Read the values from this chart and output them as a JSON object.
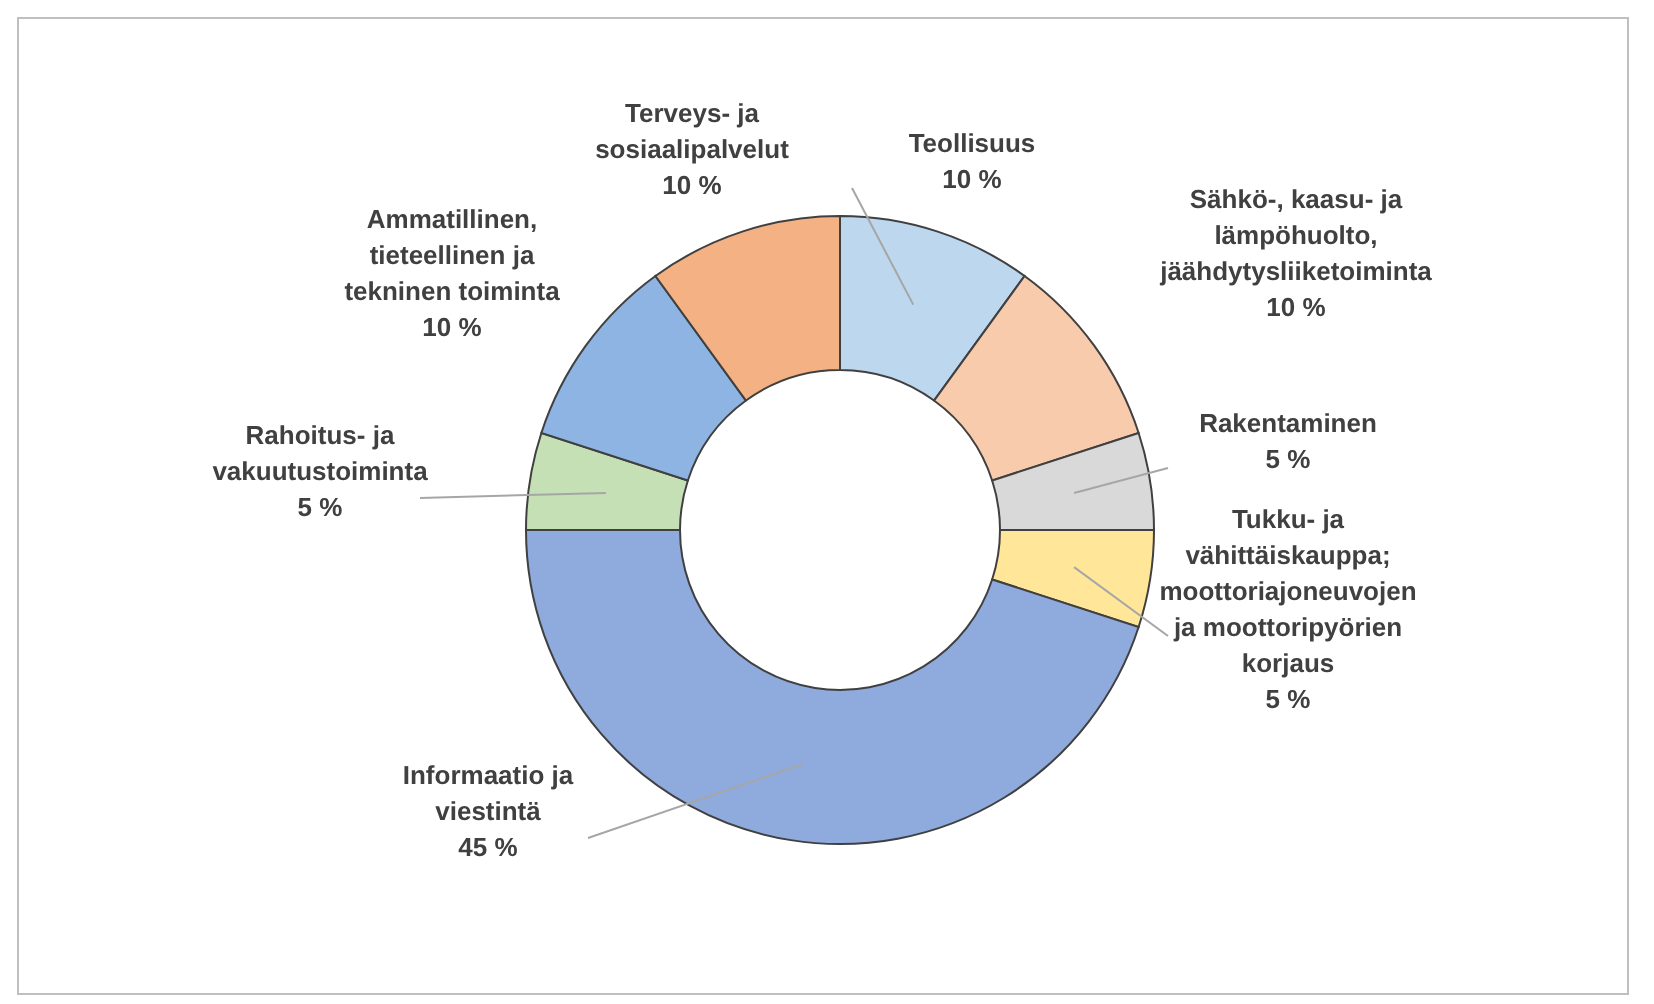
{
  "chart_data": {
    "type": "donut",
    "categories": [
      "Teollisuus",
      "Sähkö-, kaasu- ja lämpöhuolto, jäähdytysliiketoiminta",
      "Rakentaminen",
      "Tukku- ja vähittäiskauppa; moottoriajoneuvojen ja moottoripyörien korjaus",
      "Informaatio ja viestintä",
      "Rahoitus- ja vakuutustoiminta",
      "Ammatillinen, tieteellinen ja tekninen toiminta",
      "Terveys- ja sosiaalipalvelut"
    ],
    "values": [
      10,
      10,
      5,
      5,
      45,
      5,
      10,
      10
    ],
    "value_labels": [
      "10 %",
      "10 %",
      "5 %",
      "5 %",
      "45 %",
      "5 %",
      "10 %",
      "10 %"
    ],
    "colors": [
      "#bdd7ee",
      "#f8cbad",
      "#d9d9d9",
      "#ffe699",
      "#8faadc",
      "#c5e0b4",
      "#8eb4e3",
      "#f4b183"
    ],
    "legend": false
  }
}
